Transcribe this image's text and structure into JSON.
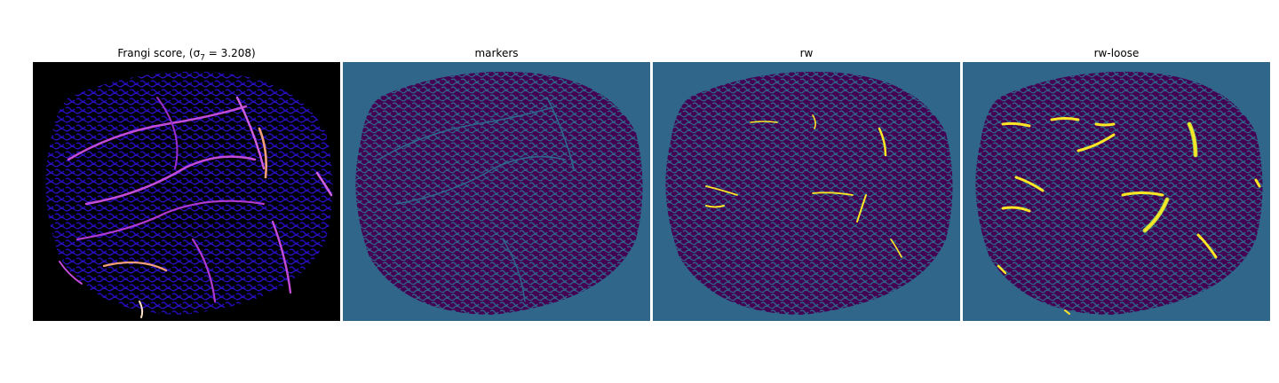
{
  "figure": {
    "panels": [
      {
        "title": "Frangi score, (σ",
        "title_sub": "7",
        "title_tail": " = 3.208)",
        "image": "frangi-vesselness-map",
        "colors": {
          "background": "#000000",
          "low": "#1f0bb0",
          "mid": "#7a1fd6",
          "high": "#f3a07a",
          "peak": "#fde2c6"
        }
      },
      {
        "title": "markers",
        "image": "markers-label-map",
        "colors": {
          "background": "#2f6689",
          "foreground": "#440154"
        }
      },
      {
        "title": "rw",
        "image": "random-walker-segmentation",
        "colors": {
          "background": "#2f6689",
          "foreground": "#440154",
          "vessel": "#fde725"
        }
      },
      {
        "title": "rw-loose",
        "image": "random-walker-loose-segmentation",
        "colors": {
          "background": "#2f6689",
          "foreground": "#440154",
          "vessel": "#fde725",
          "vessel_edge": "#a3d14a"
        }
      }
    ]
  }
}
